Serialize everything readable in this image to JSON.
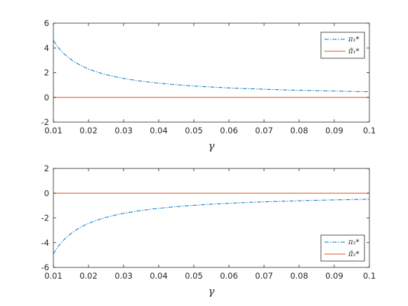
{
  "chart_data": [
    {
      "type": "line",
      "title": "",
      "xlabel": "γ",
      "ylabel": "",
      "xlim": [
        0.01,
        0.1
      ],
      "ylim": [
        -2,
        6
      ],
      "x_ticks": [
        "0.01",
        "0.02",
        "0.03",
        "0.04",
        "0.05",
        "0.06",
        "0.07",
        "0.08",
        "0.09",
        "0.1"
      ],
      "y_ticks": [
        "-2",
        "0",
        "2",
        "4",
        "6"
      ],
      "grid": false,
      "legend_position": "top-right",
      "series": [
        {
          "name": "π₁*",
          "color": "#0072BD",
          "line_style": "dash-dot",
          "x": [
            0.01,
            0.015,
            0.02,
            0.025,
            0.03,
            0.04,
            0.05,
            0.06,
            0.07,
            0.08,
            0.09,
            0.1
          ],
          "y": [
            4.6,
            3.07,
            2.3,
            1.84,
            1.53,
            1.15,
            0.92,
            0.77,
            0.66,
            0.58,
            0.51,
            0.46
          ]
        },
        {
          "name": "π̃₁*",
          "color": "#D95319",
          "line_style": "solid",
          "x": [
            0.01,
            0.1
          ],
          "y": [
            0,
            0
          ]
        }
      ]
    },
    {
      "type": "line",
      "title": "",
      "xlabel": "γ",
      "ylabel": "",
      "xlim": [
        0.01,
        0.1
      ],
      "ylim": [
        -6,
        2
      ],
      "x_ticks": [
        "0.01",
        "0.02",
        "0.03",
        "0.04",
        "0.05",
        "0.06",
        "0.07",
        "0.08",
        "0.09",
        "0.1"
      ],
      "y_ticks": [
        "-6",
        "-4",
        "-2",
        "0",
        "2"
      ],
      "grid": false,
      "legend_position": "bottom-right",
      "series": [
        {
          "name": "π₂*",
          "color": "#0072BD",
          "line_style": "dash-dot",
          "x": [
            0.01,
            0.015,
            0.02,
            0.025,
            0.03,
            0.04,
            0.05,
            0.06,
            0.07,
            0.08,
            0.09,
            0.1
          ],
          "y": [
            -4.9,
            -3.27,
            -2.45,
            -1.96,
            -1.63,
            -1.23,
            -0.98,
            -0.82,
            -0.7,
            -0.61,
            -0.54,
            -0.49
          ]
        },
        {
          "name": "π̃₂*",
          "color": "#D95319",
          "line_style": "solid",
          "x": [
            0.01,
            0.1
          ],
          "y": [
            0,
            0
          ]
        }
      ]
    }
  ]
}
